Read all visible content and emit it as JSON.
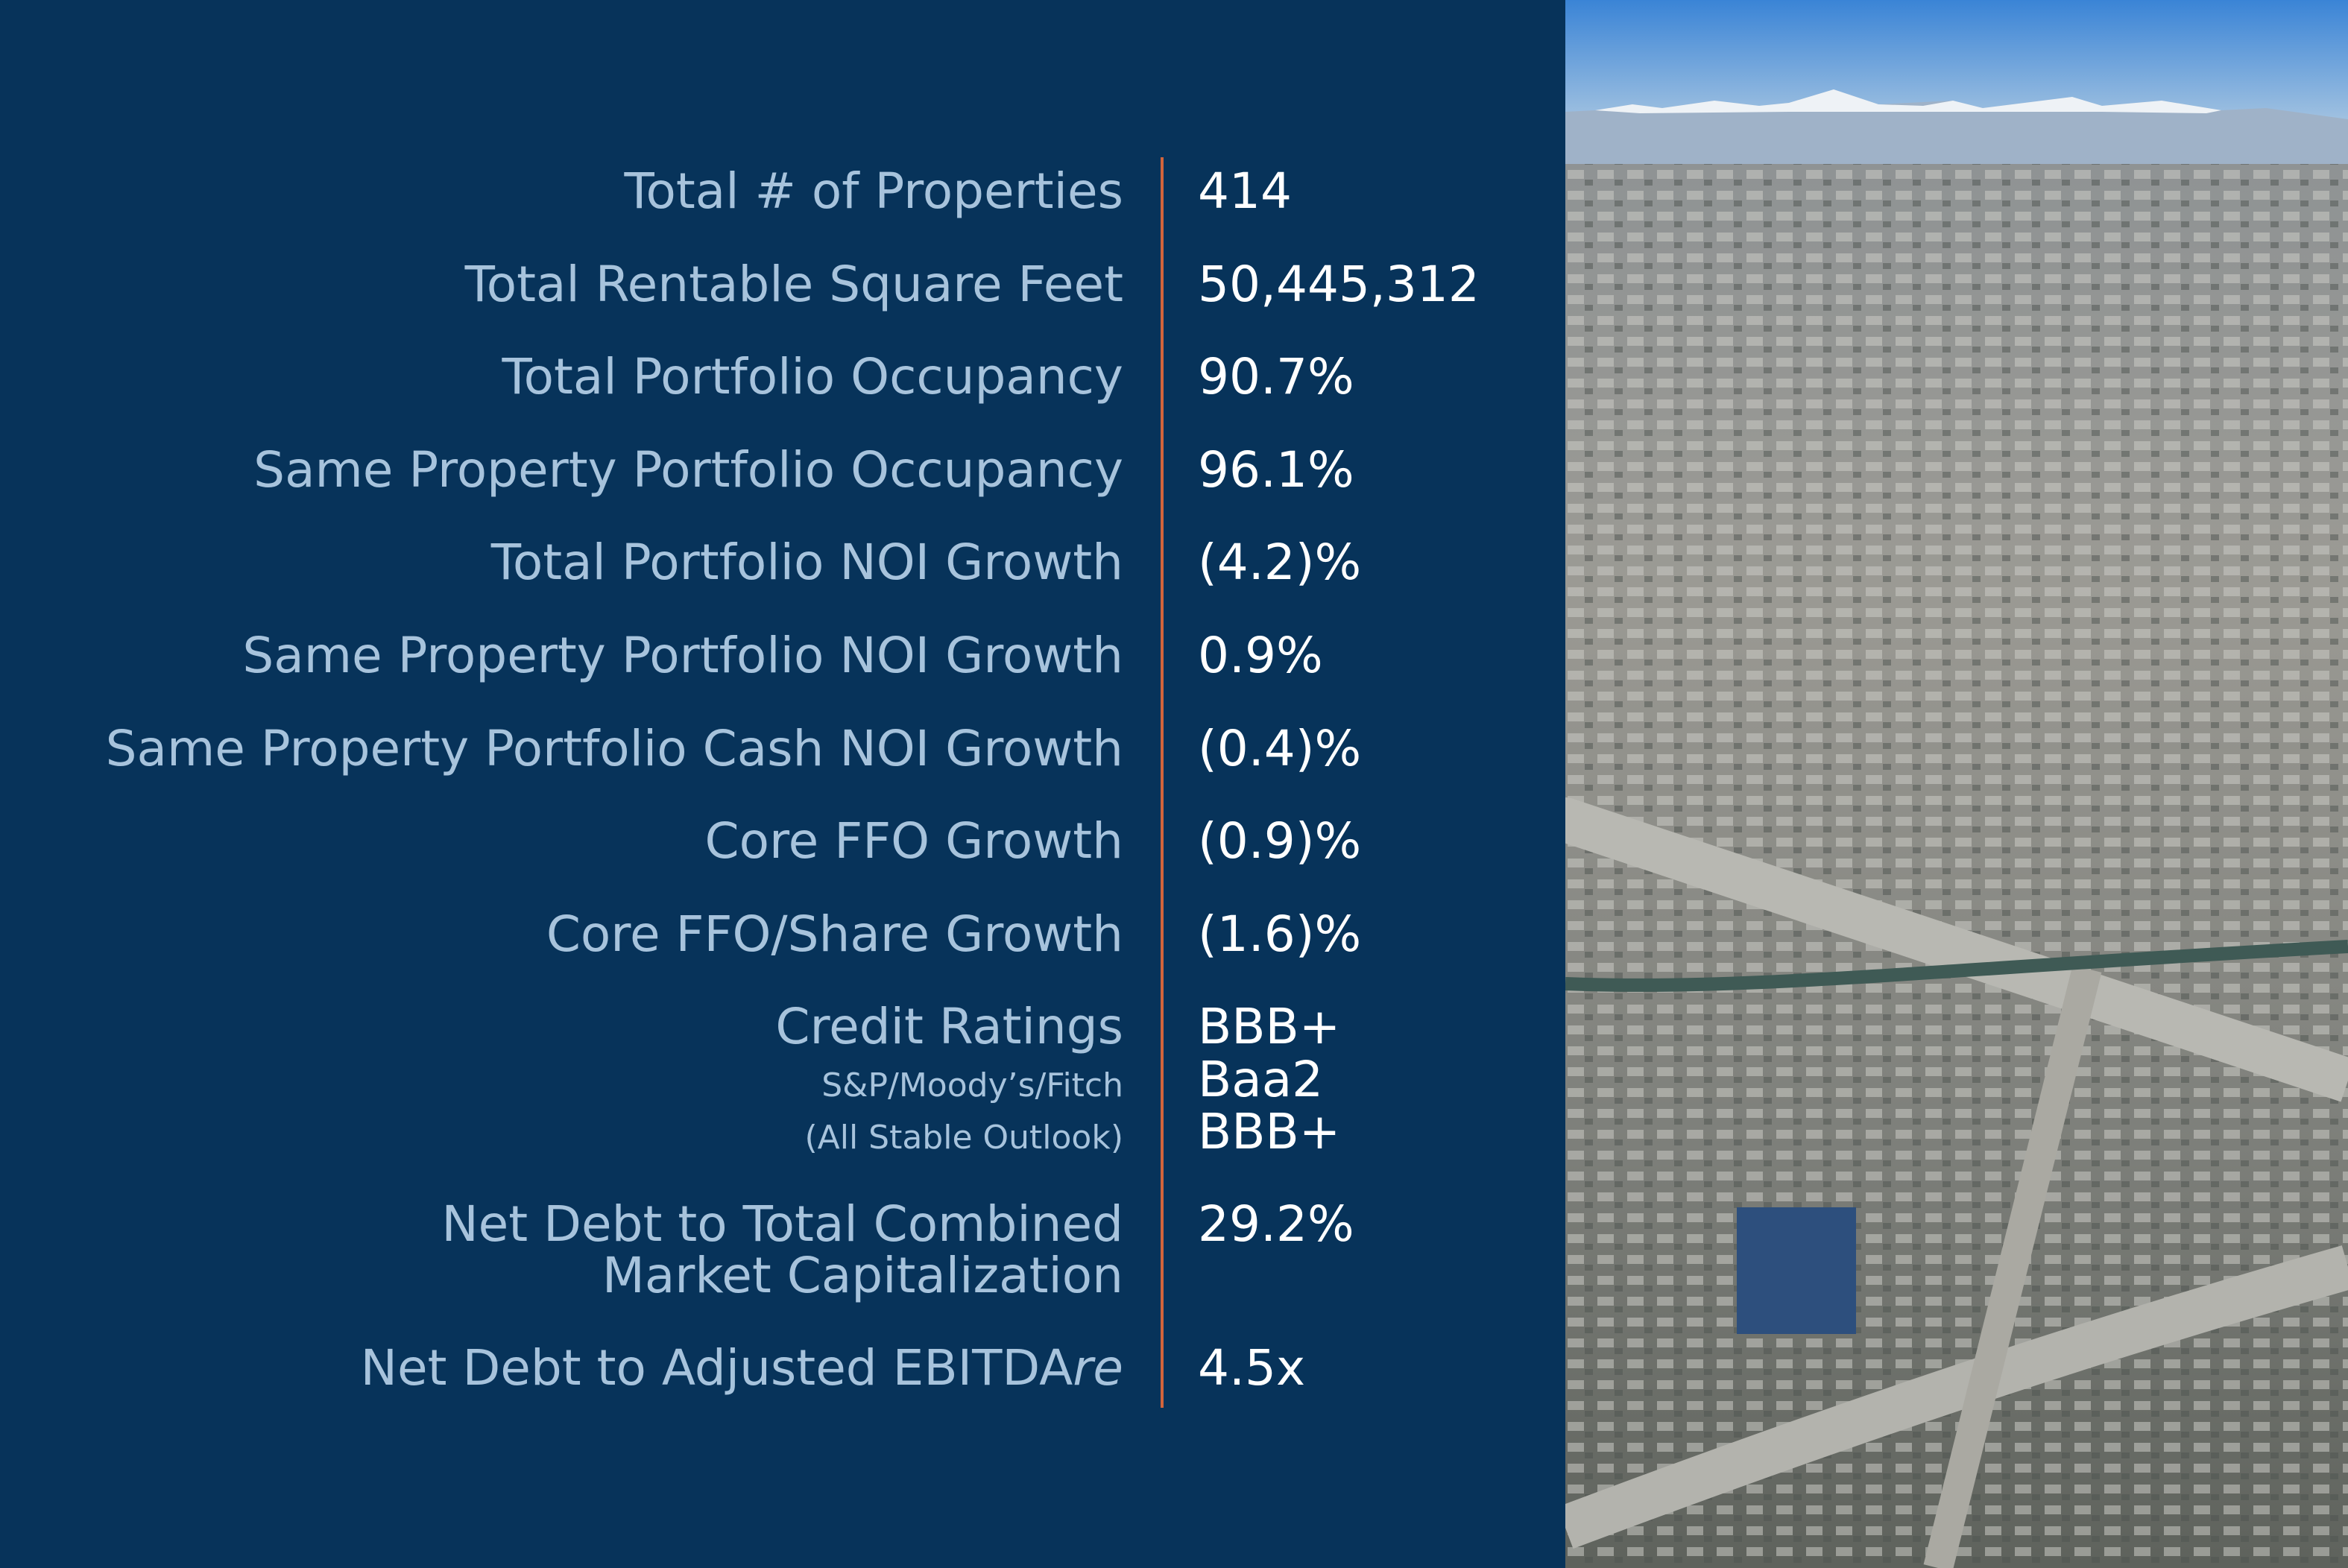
{
  "metrics": [
    {
      "label": "Total # of Properties",
      "value": "414"
    },
    {
      "label": "Total Rentable Square Feet",
      "value": "50,445,312"
    },
    {
      "label": "Total Portfolio Occupancy",
      "value": "90.7%"
    },
    {
      "label": "Same Property Portfolio Occupancy",
      "value": "96.1%"
    },
    {
      "label": "Total Portfolio NOI Growth",
      "value": "(4.2)%"
    },
    {
      "label": "Same Property Portfolio NOI Growth",
      "value": "0.9%"
    },
    {
      "label": "Same Property Portfolio Cash NOI Growth",
      "value": "(0.4)%"
    },
    {
      "label": "Core FFO Growth",
      "value": "(0.9)%"
    },
    {
      "label": "Core FFO/Share Growth",
      "value": "(1.6)%"
    }
  ],
  "credit": {
    "label": "Credit Ratings",
    "notes": [
      "S&P/Moody’s/Fitch",
      "(All Stable Outlook)"
    ],
    "values": [
      "BBB+",
      "Baa2",
      "BBB+"
    ]
  },
  "net_debt_cap": {
    "label_lines": [
      "Net Debt to Total Combined",
      "Market Capitalization"
    ],
    "value": "29.2%"
  },
  "net_debt_ebitda": {
    "label": "Net Debt to Adjusted EBITDA",
    "label_suffix": "re",
    "value": "4.5x"
  }
}
